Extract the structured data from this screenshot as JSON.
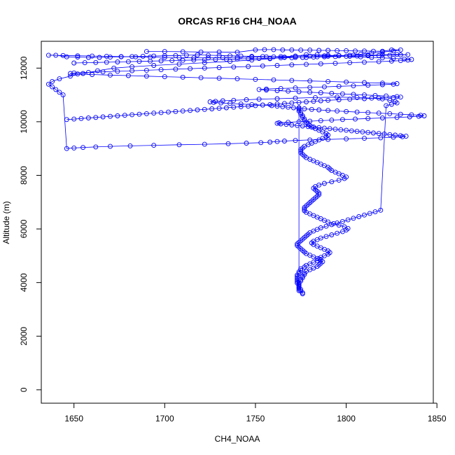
{
  "chart_data": {
    "type": "scatter",
    "title": "ORCAS RF16 CH4_NOAA",
    "xlabel": "CH4_NOAA",
    "ylabel": "Altitude (m)",
    "xlim": [
      1632,
      1848
    ],
    "ylim": [
      -500,
      13000
    ],
    "x_ticks": [
      1650,
      1700,
      1750,
      1800,
      1850
    ],
    "y_ticks": [
      0,
      2000,
      4000,
      6000,
      8000,
      10000,
      12000
    ],
    "grid": false,
    "legend": "none",
    "color": "#0000ff",
    "series": [
      {
        "x": [
          1776,
          1776,
          1775,
          1775,
          1774,
          1774,
          1774,
          1773,
          1773,
          1773,
          1773,
          1773,
          1773,
          1774,
          1774,
          1775,
          1775,
          1777,
          1778,
          1780,
          1782,
          1784,
          1785,
          1786,
          1788,
          1790,
          1791,
          1790,
          1788,
          1786,
          1784,
          1782,
          1781,
          1782,
          1784,
          1786,
          1789,
          1792,
          1795,
          1798,
          1800,
          1801,
          1799,
          1796,
          1793,
          1790,
          1788,
          1786,
          1784,
          1782,
          1780,
          1778,
          1777,
          1777,
          1777,
          1778,
          1779,
          1780,
          1781,
          1782,
          1783,
          1784,
          1785,
          1785,
          1784,
          1783,
          1782,
          1783,
          1785,
          1788,
          1792,
          1796,
          1799,
          1800,
          1798,
          1796,
          1794,
          1792,
          1791,
          1790,
          1788,
          1786,
          1784,
          1782,
          1780,
          1778,
          1777,
          1776,
          1775,
          1775,
          1775,
          1776,
          1777,
          1779,
          1781,
          1783,
          1785,
          1787,
          1789,
          1790,
          1789,
          1787,
          1785,
          1783,
          1781,
          1780,
          1779,
          1778,
          1777,
          1777,
          1776,
          1776,
          1775,
          1775,
          1774,
          1774,
          1774,
          1774,
          1774,
          1774,
          1774,
          1774,
          1774,
          1775,
          1775,
          1776,
          1776,
          1777,
          1777,
          1778,
          1780,
          1782,
          1784,
          1785,
          1786,
          1787,
          1786,
          1784,
          1782,
          1780,
          1778,
          1777,
          1776,
          1775,
          1774,
          1773,
          1773,
          1774,
          1775,
          1776,
          1777,
          1778,
          1779,
          1780,
          1782,
          1784,
          1786,
          1789,
          1792,
          1795,
          1798,
          1801,
          1804,
          1807,
          1810,
          1813,
          1816,
          1819,
          1822,
          1825,
          1828,
          1827,
          1824,
          1820,
          1814,
          1806,
          1795,
          1783,
          1772,
          1762,
          1752,
          1745,
          1738,
          1732,
          1728,
          1725,
          1727,
          1731,
          1736,
          1742,
          1748,
          1754,
          1759,
          1762,
          1765,
          1768,
          1771,
          1774,
          1777,
          1781,
          1785,
          1790,
          1795,
          1800,
          1806,
          1812,
          1818,
          1824,
          1830,
          1836,
          1841,
          1843,
          1840,
          1835,
          1828,
          1820,
          1812,
          1805,
          1798,
          1792,
          1786,
          1780,
          1774,
          1768,
          1763,
          1762,
          1764,
          1767,
          1770,
          1773,
          1776,
          1779,
          1782,
          1785,
          1788,
          1791,
          1794,
          1797,
          1800,
          1803,
          1806,
          1809,
          1812,
          1815,
          1818,
          1821,
          1824,
          1827,
          1830,
          1833,
          1831,
          1826,
          1819,
          1810,
          1800,
          1790,
          1780,
          1772,
          1766,
          1762,
          1758,
          1753,
          1745,
          1735,
          1722,
          1708,
          1694,
          1681,
          1670,
          1662,
          1655,
          1650,
          1646,
          1644,
          1642,
          1640,
          1638,
          1636,
          1638,
          1642,
          1648,
          1655,
          1663,
          1672,
          1682,
          1694,
          1708,
          1722,
          1736,
          1748,
          1758,
          1766,
          1772,
          1778,
          1784,
          1790,
          1796,
          1802,
          1808,
          1814,
          1820,
          1826,
          1832,
          1836,
          1834,
          1830,
          1825,
          1818,
          1810,
          1802,
          1794,
          1786,
          1778,
          1770,
          1762,
          1754,
          1746,
          1738,
          1730,
          1722,
          1714,
          1706,
          1698,
          1690,
          1682,
          1674,
          1666,
          1658,
          1650,
          1648,
          1652,
          1660,
          1670,
          1680,
          1690,
          1700,
          1710,
          1720,
          1730,
          1740,
          1750,
          1760,
          1770,
          1780,
          1790,
          1800,
          1810,
          1820,
          1828,
          1826,
          1820,
          1812,
          1804,
          1796,
          1788,
          1780,
          1772,
          1764,
          1756,
          1752,
          1756,
          1762,
          1768,
          1774,
          1780,
          1786,
          1792,
          1798,
          1804,
          1810,
          1816,
          1822,
          1828,
          1830,
          1826,
          1818,
          1810,
          1802,
          1796,
          1790,
          1786,
          1782,
          1778,
          1774,
          1770,
          1766,
          1762,
          1758,
          1754,
          1750,
          1746,
          1742,
          1738,
          1734,
          1730,
          1726,
          1722,
          1718,
          1714,
          1710,
          1706,
          1702,
          1698,
          1694,
          1690,
          1686,
          1682,
          1678,
          1674,
          1670,
          1666,
          1662,
          1658,
          1654,
          1650,
          1646
        ],
        "y": [
          3580,
          3620,
          3680,
          3740,
          3800,
          3860,
          3920,
          3980,
          4040,
          4100,
          4160,
          4220,
          4280,
          4340,
          4400,
          4460,
          4520,
          4580,
          4640,
          4700,
          4760,
          4820,
          4880,
          4940,
          5000,
          5060,
          5120,
          5180,
          5240,
          5300,
          5360,
          5420,
          5480,
          5540,
          5600,
          5660,
          5720,
          5780,
          5840,
          5900,
          5960,
          6020,
          6080,
          6140,
          6200,
          6260,
          6320,
          6380,
          6440,
          6500,
          6560,
          6620,
          6680,
          6740,
          6800,
          6860,
          6920,
          6980,
          7040,
          7100,
          7160,
          7220,
          7280,
          7340,
          7400,
          7460,
          7520,
          7580,
          7640,
          7700,
          7760,
          7820,
          7880,
          7940,
          8000,
          8060,
          8120,
          8180,
          8240,
          8300,
          8360,
          8420,
          8480,
          8540,
          8600,
          8660,
          8720,
          8780,
          8840,
          8900,
          8960,
          9020,
          9080,
          9140,
          9200,
          9260,
          9320,
          9380,
          9440,
          9500,
          9560,
          9620,
          9680,
          9740,
          9800,
          9860,
          9920,
          9980,
          10040,
          10100,
          10160,
          10220,
          10280,
          10340,
          10400,
          10460,
          10520,
          3700,
          3760,
          3820,
          3880,
          3940,
          4000,
          4060,
          4120,
          4180,
          4240,
          4300,
          4360,
          4420,
          4480,
          4540,
          4600,
          4660,
          4720,
          4780,
          4840,
          4900,
          4960,
          5020,
          5080,
          5140,
          5200,
          5260,
          5320,
          5380,
          5440,
          5500,
          5560,
          5620,
          5680,
          5740,
          5800,
          5860,
          5920,
          5980,
          6040,
          6100,
          6160,
          6220,
          6280,
          6340,
          6400,
          6460,
          6520,
          6580,
          6640,
          6700,
          10600,
          10650,
          10700,
          10750,
          10800,
          10850,
          10880,
          10900,
          10920,
          10900,
          10880,
          10860,
          10840,
          10820,
          10800,
          10780,
          10760,
          10740,
          10720,
          10700,
          10680,
          10660,
          10640,
          10620,
          10600,
          10580,
          10560,
          10540,
          10520,
          10500,
          10480,
          10460,
          10440,
          10420,
          10400,
          10380,
          10360,
          10340,
          10320,
          10300,
          10280,
          10260,
          10240,
          10220,
          10200,
          10180,
          10160,
          10140,
          10120,
          10100,
          10080,
          10060,
          10040,
          10020,
          10000,
          9980,
          9960,
          9940,
          9920,
          9900,
          9880,
          9860,
          9840,
          9820,
          9800,
          9780,
          9760,
          9740,
          9720,
          9700,
          9680,
          9660,
          9640,
          9620,
          9600,
          9580,
          9560,
          9540,
          9520,
          9500,
          9480,
          9460,
          9440,
          9420,
          9400,
          9380,
          9360,
          9340,
          9320,
          9300,
          9280,
          9260,
          9240,
          9220,
          9200,
          9180,
          9160,
          9140,
          9120,
          9100,
          9080,
          9060,
          9040,
          9020,
          9000,
          11000,
          11100,
          11200,
          11300,
          11400,
          11500,
          11600,
          11700,
          11800,
          11900,
          12000,
          12050,
          12100,
          12150,
          12200,
          12250,
          12300,
          12350,
          12400,
          12450,
          12500,
          12500,
          12480,
          12460,
          12440,
          12420,
          12400,
          12380,
          12360,
          12340,
          12320,
          12300,
          12280,
          12260,
          12240,
          12220,
          12200,
          12180,
          12160,
          12140,
          12120,
          12100,
          12080,
          12060,
          12040,
          12020,
          12000,
          11980,
          11960,
          11940,
          11920,
          11900,
          11880,
          11860,
          11840,
          11820,
          11800,
          11780,
          11760,
          11740,
          11720,
          11700,
          11680,
          11660,
          11640,
          11620,
          11600,
          11580,
          11560,
          11540,
          11520,
          11500,
          11480,
          11460,
          11440,
          11420,
          11400,
          11380,
          11360,
          11340,
          11320,
          11300,
          11280,
          11260,
          11240,
          11220,
          11200,
          11180,
          11160,
          11140,
          11120,
          11100,
          11080,
          11060,
          11040,
          11020,
          11000,
          10980,
          10960,
          10940,
          10920,
          10900,
          10880,
          10860,
          10840,
          10820,
          10800,
          10780,
          10760,
          10740,
          10720,
          10700,
          10680,
          10660,
          10640,
          10620,
          10600,
          10580,
          10560,
          10540,
          10520,
          10500,
          10480,
          10460,
          10440,
          10420,
          10400,
          10380,
          10360,
          10340,
          10320,
          10300,
          10280,
          10260,
          10240,
          10220,
          10200,
          10180,
          10160,
          10140,
          10120,
          10100,
          10080
        ]
      },
      {
        "x": [
          1690,
          1700,
          1710,
          1720,
          1730,
          1740,
          1750,
          1755,
          1760,
          1765,
          1770,
          1775,
          1780,
          1785,
          1790,
          1795,
          1800,
          1805,
          1810,
          1815,
          1820,
          1825,
          1830,
          1826,
          1820,
          1814,
          1808,
          1802,
          1796,
          1790,
          1784,
          1778,
          1772,
          1766,
          1760,
          1754,
          1748,
          1742,
          1736,
          1730,
          1724,
          1718,
          1712,
          1706,
          1700,
          1694,
          1688,
          1682,
          1676,
          1670,
          1664,
          1658,
          1652,
          1646,
          1640,
          1636,
          1644,
          1652,
          1660,
          1668,
          1676,
          1684,
          1692,
          1700,
          1708,
          1716,
          1724,
          1732,
          1740,
          1748,
          1756,
          1764,
          1772,
          1780,
          1788,
          1796,
          1804,
          1812,
          1820,
          1828,
          1834,
          1830,
          1824,
          1818,
          1812,
          1806,
          1800,
          1794,
          1788,
          1782,
          1776,
          1770,
          1764,
          1758,
          1752,
          1746,
          1740,
          1734,
          1728,
          1722,
          1716,
          1710,
          1704,
          1698,
          1692,
          1686,
          1680,
          1674,
          1668,
          1662,
          1656,
          1650
        ],
        "y": [
          12620,
          12620,
          12610,
          12600,
          12600,
          12590,
          12680,
          12690,
          12690,
          12680,
          12680,
          12670,
          12670,
          12660,
          12660,
          12650,
          12650,
          12640,
          12640,
          12630,
          12630,
          12680,
          12680,
          12640,
          12600,
          12560,
          12520,
          12480,
          12460,
          12440,
          12420,
          12400,
          12400,
          12410,
          12420,
          12430,
          12440,
          12450,
          12460,
          12470,
          12480,
          12490,
          12480,
          12470,
          12460,
          12450,
          12440,
          12430,
          12420,
          12410,
          12400,
          12400,
          12410,
          12420,
          12480,
          12480,
          12470,
          12460,
          12450,
          12440,
          12430,
          12420,
          12410,
          12400,
          12390,
          12380,
          12380,
          12390,
          12400,
          12410,
          12420,
          12430,
          12440,
          12450,
          12460,
          12470,
          12480,
          12490,
          12500,
          12510,
          12500,
          12490,
          12480,
          12470,
          12460,
          12450,
          12440,
          12430,
          12420,
          12410,
          12400,
          12390,
          12380,
          12370,
          12360,
          12350,
          12340,
          12330,
          12320,
          12310,
          12300,
          12290,
          12280,
          12270,
          12260,
          12250,
          12240,
          12230,
          12220,
          12210,
          12200,
          12190
        ]
      }
    ]
  }
}
